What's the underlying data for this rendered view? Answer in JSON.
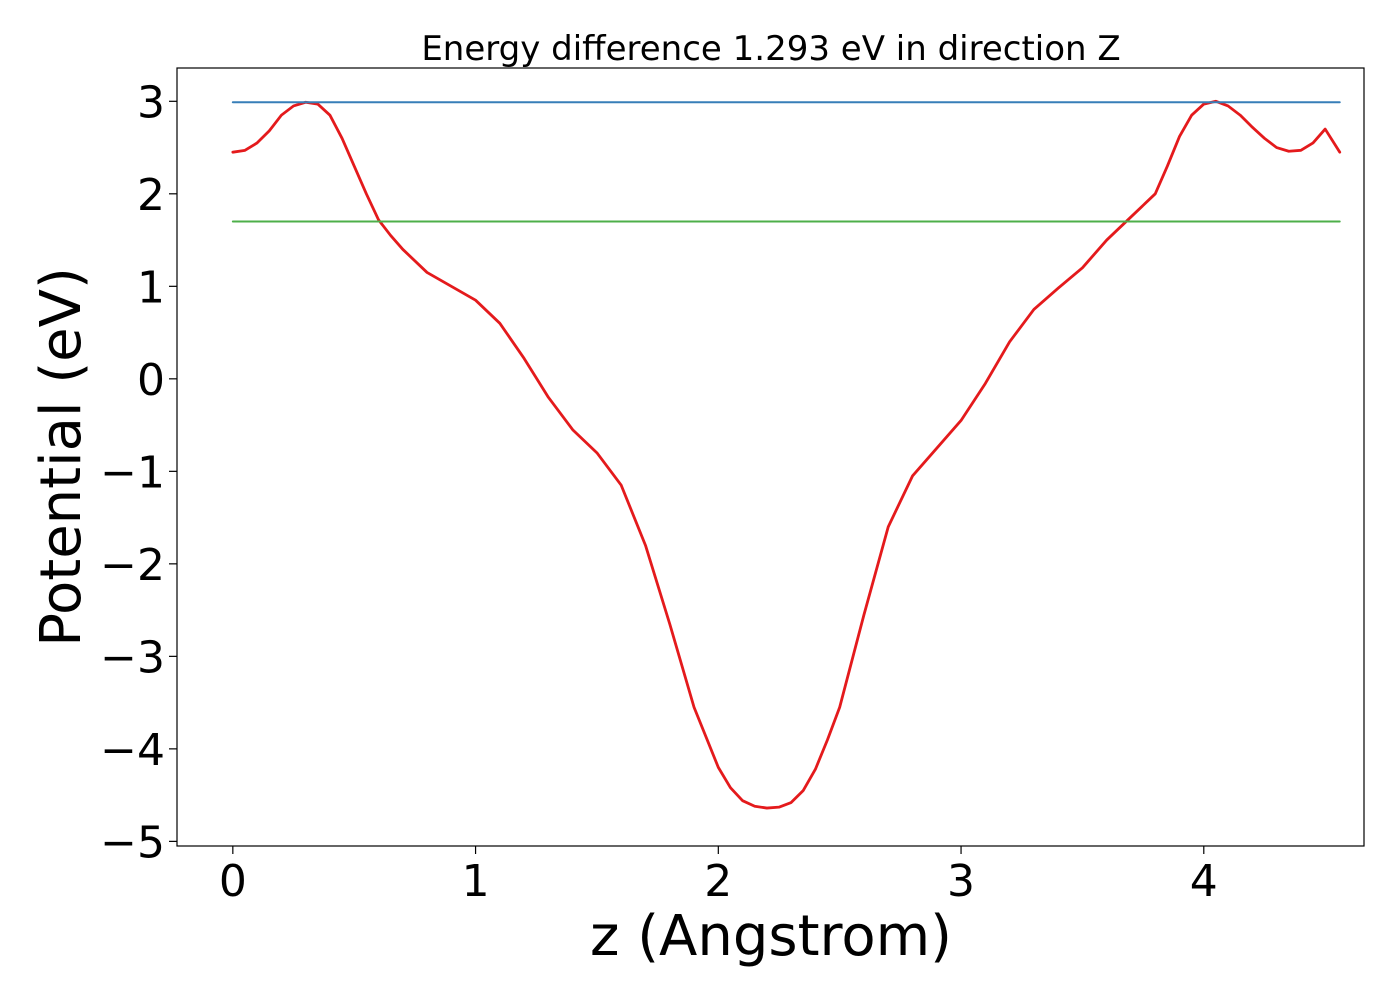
{
  "chart_data": {
    "type": "line",
    "title": "Energy difference 1.293 eV in direction Z",
    "xlabel": "z (Angstrom)",
    "ylabel": "Potential (eV)",
    "xlim": [
      -0.23,
      4.66
    ],
    "ylim": [
      -5.05,
      3.36
    ],
    "xticks": [
      0,
      1,
      2,
      3,
      4
    ],
    "xtick_labels": [
      "0",
      "1",
      "2",
      "3",
      "4"
    ],
    "yticks": [
      3,
      2,
      1,
      0,
      -1,
      -2,
      -3,
      -4,
      -5
    ],
    "ytick_labels": [
      "3",
      "2",
      "1",
      "0",
      "−1",
      "−2",
      "−3",
      "−4",
      "−5"
    ],
    "grid": false,
    "series": [
      {
        "color": "#e41a1c",
        "kind": "curve",
        "x": [
          0.0,
          0.05,
          0.1,
          0.15,
          0.2,
          0.25,
          0.3,
          0.35,
          0.4,
          0.45,
          0.5,
          0.55,
          0.6,
          0.65,
          0.7,
          0.8,
          0.9,
          1.0,
          1.1,
          1.2,
          1.3,
          1.4,
          1.5,
          1.6,
          1.7,
          1.8,
          1.9,
          2.0,
          2.05,
          2.1,
          2.15,
          2.2,
          2.25,
          2.3,
          2.35,
          2.4,
          2.45,
          2.5,
          2.55,
          2.6,
          2.7,
          2.8,
          2.9,
          3.0,
          3.1,
          3.2,
          3.3,
          3.4,
          3.5,
          3.6,
          3.7,
          3.8,
          3.85,
          3.9,
          3.95,
          4.0,
          4.05,
          4.1,
          4.15,
          4.2,
          4.25,
          4.3,
          4.35,
          4.4,
          4.45,
          4.5,
          4.56
        ],
        "y": [
          2.45,
          2.47,
          2.55,
          2.68,
          2.85,
          2.95,
          2.99,
          2.97,
          2.85,
          2.6,
          2.3,
          2.0,
          1.72,
          1.55,
          1.4,
          1.15,
          1.0,
          0.85,
          0.6,
          0.22,
          -0.2,
          -0.55,
          -0.8,
          -1.15,
          -1.8,
          -2.65,
          -3.55,
          -4.2,
          -4.42,
          -4.56,
          -4.62,
          -4.64,
          -4.63,
          -4.58,
          -4.45,
          -4.22,
          -3.9,
          -3.55,
          -3.05,
          -2.55,
          -1.6,
          -1.05,
          -0.75,
          -0.45,
          -0.05,
          0.4,
          0.75,
          0.98,
          1.2,
          1.5,
          1.75,
          2.0,
          2.3,
          2.62,
          2.85,
          2.97,
          3.0,
          2.95,
          2.85,
          2.72,
          2.6,
          2.5,
          2.46,
          2.47,
          2.55,
          2.7,
          2.45
        ]
      },
      {
        "color": "#377eb8",
        "kind": "horizontal",
        "x": [
          0.0,
          4.56
        ],
        "y": [
          2.99,
          2.99
        ]
      },
      {
        "color": "#4daf4a",
        "kind": "horizontal",
        "x": [
          0.0,
          4.56
        ],
        "y": [
          1.7,
          1.7
        ]
      }
    ]
  }
}
